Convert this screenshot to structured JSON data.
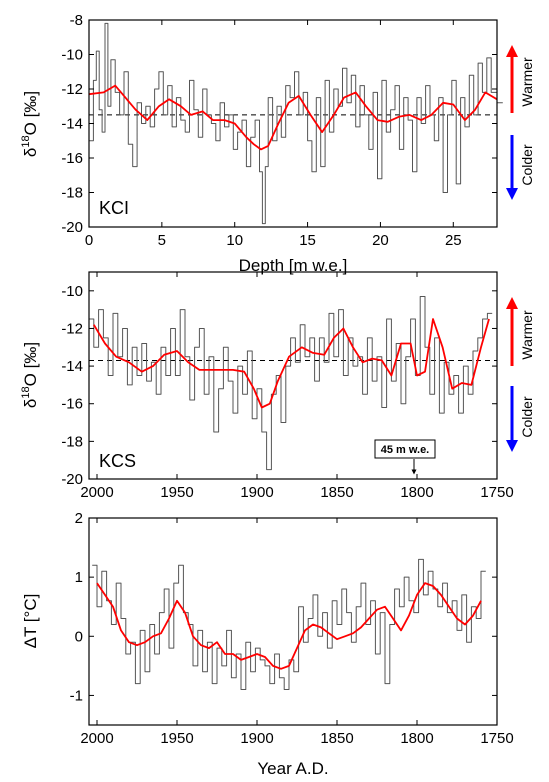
{
  "chart_data": [
    {
      "type": "line",
      "panel_label": "KCI",
      "xlabel": "Depth [m w.e.]",
      "ylabel": "δ18O [‰]",
      "ylabel_main": "δ",
      "ylabel_sup": "18",
      "ylabel_rest": "O [‰]",
      "xlim": [
        0,
        28
      ],
      "ylim": [
        -20,
        -8
      ],
      "xticks": [
        "0",
        "5",
        "10",
        "15",
        "20",
        "25"
      ],
      "yticks": [
        "-20",
        "-18",
        "-16",
        "-14",
        "-12",
        "-10",
        "-8"
      ],
      "reference_line_y": -13.5,
      "series": [
        {
          "color": "#555555",
          "style": "step",
          "x": [
            0,
            0.3,
            0.5,
            0.7,
            0.9,
            1.1,
            1.3,
            1.5,
            1.8,
            2.1,
            2.4,
            2.7,
            3.0,
            3.3,
            3.6,
            3.9,
            4.2,
            4.5,
            4.8,
            5.1,
            5.4,
            5.7,
            6.0,
            6.3,
            6.6,
            6.9,
            7.2,
            7.5,
            7.8,
            8.1,
            8.4,
            8.7,
            9.0,
            9.3,
            9.6,
            9.9,
            10.2,
            10.5,
            10.8,
            11.1,
            11.4,
            11.7,
            11.9,
            12.1,
            12.3,
            12.6,
            12.9,
            13.2,
            13.5,
            13.8,
            14.1,
            14.4,
            14.7,
            15.0,
            15.3,
            15.6,
            15.9,
            16.2,
            16.5,
            16.8,
            17.1,
            17.4,
            17.7,
            18.0,
            18.3,
            18.6,
            18.9,
            19.2,
            19.5,
            19.8,
            20.1,
            20.4,
            20.7,
            21.0,
            21.3,
            21.6,
            21.9,
            22.2,
            22.5,
            22.8,
            23.1,
            23.4,
            23.7,
            24.0,
            24.3,
            24.6,
            24.9,
            25.2,
            25.5,
            25.8,
            26.1,
            26.4,
            26.7,
            27.0,
            27.3,
            27.6,
            28.0
          ],
          "y": [
            -15,
            -11.5,
            -9.8,
            -13.2,
            -14.5,
            -8.2,
            -13,
            -10.3,
            -12.2,
            -13.5,
            -11,
            -15.2,
            -16.5,
            -12.8,
            -14,
            -13,
            -14.2,
            -12,
            -11,
            -13.5,
            -11.8,
            -14.2,
            -12.5,
            -13.8,
            -14.5,
            -11.5,
            -13.2,
            -14.8,
            -12,
            -13.5,
            -14,
            -15,
            -12.8,
            -14.2,
            -13.5,
            -15.5,
            -14.5,
            -13.8,
            -16.5,
            -14.8,
            -13.8,
            -16.8,
            -19.8,
            -16.5,
            -12.5,
            -15,
            -13,
            -14.8,
            -11.8,
            -12.5,
            -11,
            -13.5,
            -12.2,
            -15,
            -16.8,
            -12.5,
            -16.5,
            -11.5,
            -14.5,
            -12,
            -13,
            -10.8,
            -12.8,
            -11.2,
            -14.2,
            -11.8,
            -13.5,
            -15.5,
            -12.2,
            -17.2,
            -11.5,
            -14.5,
            -13.2,
            -11.8,
            -15.5,
            -12.5,
            -13.8,
            -16.8,
            -12.5,
            -14,
            -11.8,
            -13.5,
            -15,
            -12.5,
            -18,
            -13.5,
            -11.5,
            -17.5,
            -12.5,
            -14.2,
            -11.2,
            -13.5,
            -10.5,
            -12.2,
            -10.2,
            -12.2,
            -12.8
          ]
        },
        {
          "color": "#ff0000",
          "style": "smooth",
          "x": [
            0,
            1,
            1.8,
            2.5,
            3.2,
            4,
            4.8,
            5.5,
            6.3,
            7,
            7.8,
            8.5,
            9.3,
            10,
            10.8,
            11.3,
            11.8,
            12.3,
            13,
            13.7,
            14.4,
            15.2,
            16,
            16.8,
            17.5,
            18.3,
            19,
            19.8,
            20.5,
            21.3,
            22,
            22.8,
            23.5,
            24.3,
            25,
            25.8,
            26.5,
            27.2,
            28
          ],
          "y": [
            -12.3,
            -12.2,
            -11.8,
            -12.5,
            -13.2,
            -13.8,
            -13,
            -12.6,
            -13,
            -13.5,
            -13.3,
            -13.8,
            -13.8,
            -14,
            -14.8,
            -15.2,
            -15.5,
            -15.3,
            -14,
            -12.8,
            -12.4,
            -13.5,
            -14.5,
            -13.5,
            -12.5,
            -12.2,
            -13,
            -13.8,
            -13.9,
            -13.6,
            -13.5,
            -13.8,
            -13.5,
            -12.8,
            -12.9,
            -13.8,
            -13.2,
            -12.2,
            -12.6
          ]
        }
      ]
    },
    {
      "type": "line",
      "panel_label": "KCS",
      "xlabel": "",
      "ylabel": "δ18O [‰]",
      "ylabel_main": "δ",
      "ylabel_sup": "18",
      "ylabel_rest": "O [‰]",
      "xlim": [
        2005,
        1750
      ],
      "ylim": [
        -20,
        -9
      ],
      "xticks": [
        "2000",
        "1950",
        "1900",
        "1850",
        "1800",
        "1750"
      ],
      "yticks": [
        "-20",
        "-18",
        "-16",
        "-14",
        "-12",
        "-10"
      ],
      "reference_line_y": -13.7,
      "annotation": {
        "text": "45 m w.e.",
        "x": 1800
      },
      "series": [
        {
          "color": "#555555",
          "style": "step",
          "x": [
            2005,
            2002,
            1999,
            1996,
            1993,
            1990,
            1987,
            1984,
            1981,
            1978,
            1975,
            1972,
            1969,
            1966,
            1963,
            1960,
            1957,
            1954,
            1951,
            1948,
            1945,
            1942,
            1939,
            1936,
            1933,
            1930,
            1927,
            1924,
            1921,
            1918,
            1915,
            1912,
            1909,
            1906,
            1903,
            1900,
            1897,
            1894,
            1891,
            1888,
            1885,
            1882,
            1879,
            1876,
            1873,
            1870,
            1867,
            1864,
            1861,
            1858,
            1855,
            1852,
            1849,
            1846,
            1843,
            1840,
            1837,
            1834,
            1831,
            1828,
            1825,
            1822,
            1819,
            1816,
            1813,
            1810,
            1807,
            1804,
            1801,
            1798,
            1795,
            1792,
            1789,
            1786,
            1783,
            1780,
            1777,
            1774,
            1771,
            1768,
            1765,
            1762,
            1759,
            1756
          ],
          "y": [
            -11.5,
            -13,
            -11,
            -12.5,
            -14.5,
            -11.2,
            -13.5,
            -12,
            -15,
            -13,
            -14.5,
            -12.8,
            -14.8,
            -13.8,
            -15.5,
            -13,
            -14.5,
            -12,
            -14.5,
            -11,
            -13.5,
            -15.8,
            -13,
            -12,
            -15.5,
            -13.5,
            -17.5,
            -15.2,
            -13,
            -14.8,
            -16.5,
            -14,
            -15.5,
            -13.2,
            -16.8,
            -15.2,
            -17.5,
            -19.5,
            -15.5,
            -14.5,
            -17,
            -14,
            -12.5,
            -13.8,
            -11.8,
            -13.5,
            -12.5,
            -14.8,
            -12.5,
            -13.8,
            -11.2,
            -13.5,
            -11,
            -14.5,
            -12.5,
            -14,
            -13.5,
            -15.5,
            -12.5,
            -14.8,
            -13.5,
            -16.2,
            -11.5,
            -14.8,
            -12.8,
            -16,
            -13.5,
            -11.5,
            -14.5,
            -10.3,
            -13,
            -15.5,
            -12.5,
            -16.5,
            -13.8,
            -15.5,
            -14.5,
            -16.5,
            -14,
            -15.5,
            -13.2,
            -12.5,
            -11.5,
            -11.2
          ]
        },
        {
          "color": "#ff0000",
          "style": "smooth",
          "x": [
            2002,
            1995,
            1988,
            1980,
            1972,
            1965,
            1958,
            1950,
            1943,
            1936,
            1930,
            1922,
            1915,
            1908,
            1902,
            1897,
            1892,
            1887,
            1880,
            1872,
            1865,
            1858,
            1852,
            1846,
            1840,
            1834,
            1828,
            1822,
            1816,
            1810,
            1804,
            1800,
            1795,
            1790,
            1784,
            1778,
            1772,
            1766,
            1760,
            1755
          ],
          "y": [
            -11.8,
            -12.8,
            -13.5,
            -13.8,
            -14.3,
            -14,
            -13.4,
            -13.2,
            -13.8,
            -14.2,
            -14.2,
            -14.2,
            -14.2,
            -14.3,
            -15.2,
            -16.2,
            -16,
            -14.8,
            -13.5,
            -13,
            -13.3,
            -13.4,
            -12.5,
            -12,
            -13,
            -13.8,
            -13.6,
            -13.7,
            -14.5,
            -12.8,
            -12.8,
            -14.5,
            -14.3,
            -11.5,
            -13,
            -15.2,
            -14.9,
            -15,
            -13,
            -11.5
          ]
        }
      ]
    },
    {
      "type": "line",
      "panel_label": "",
      "xlabel": "Year A.D.",
      "ylabel": "ΔT [°C]",
      "xlim": [
        2005,
        1750
      ],
      "ylim": [
        -1.5,
        2
      ],
      "xticks": [
        "2000",
        "1950",
        "1900",
        "1850",
        "1800",
        "1750"
      ],
      "yticks": [
        "-1",
        "0",
        "1",
        "2"
      ],
      "series": [
        {
          "color": "#555555",
          "style": "step",
          "x": [
            2003,
            2000,
            1997,
            1994,
            1991,
            1988,
            1985,
            1982,
            1979,
            1976,
            1973,
            1970,
            1967,
            1964,
            1961,
            1958,
            1955,
            1952,
            1949,
            1946,
            1943,
            1940,
            1937,
            1934,
            1931,
            1928,
            1925,
            1922,
            1919,
            1916,
            1913,
            1910,
            1907,
            1904,
            1901,
            1898,
            1895,
            1892,
            1889,
            1886,
            1883,
            1880,
            1877,
            1874,
            1871,
            1868,
            1865,
            1862,
            1859,
            1856,
            1853,
            1850,
            1847,
            1844,
            1841,
            1838,
            1835,
            1832,
            1829,
            1826,
            1823,
            1820,
            1817,
            1814,
            1811,
            1808,
            1805,
            1802,
            1799,
            1796,
            1793,
            1790,
            1787,
            1784,
            1781,
            1778,
            1775,
            1772,
            1769,
            1766,
            1763,
            1760
          ],
          "y": [
            1.2,
            0.5,
            1.1,
            0.6,
            0.2,
            0.9,
            0.3,
            -0.3,
            -0.1,
            -0.8,
            0.1,
            -0.6,
            0.2,
            -0.3,
            0.4,
            0.8,
            -0.2,
            0.9,
            1.2,
            0.4,
            0.2,
            -0.5,
            0.1,
            -0.6,
            -0.1,
            -0.8,
            -0.2,
            -0.5,
            0.1,
            -0.7,
            -0.3,
            -0.9,
            -0.1,
            -0.6,
            -0.2,
            -0.4,
            -0.5,
            -0.8,
            -0.3,
            -0.7,
            -0.9,
            -0.4,
            -0.6,
            0.5,
            -0.1,
            0.3,
            0.7,
            0,
            0.4,
            -0.2,
            0.6,
            0.2,
            0.8,
            0.4,
            -0.1,
            0.5,
            0.9,
            0.2,
            0.6,
            -0.3,
            0.4,
            -0.8,
            0.2,
            0.8,
            0.5,
            1,
            0.6,
            0.4,
            1.3,
            0.7,
            1.1,
            0.8,
            0.5,
            0.9,
            0.4,
            0.6,
            0.1,
            0.7,
            -0.1,
            0.5,
            0.3,
            1.1
          ]
        },
        {
          "color": "#ff0000",
          "style": "smooth",
          "x": [
            2000,
            1995,
            1990,
            1985,
            1980,
            1975,
            1970,
            1965,
            1960,
            1955,
            1950,
            1945,
            1940,
            1935,
            1930,
            1925,
            1920,
            1915,
            1910,
            1905,
            1900,
            1895,
            1890,
            1885,
            1880,
            1875,
            1870,
            1865,
            1860,
            1855,
            1850,
            1845,
            1840,
            1835,
            1830,
            1825,
            1820,
            1815,
            1810,
            1805,
            1800,
            1795,
            1790,
            1785,
            1780,
            1775,
            1770,
            1765,
            1760
          ],
          "y": [
            0.9,
            0.7,
            0.5,
            0.1,
            -0.1,
            -0.15,
            -0.1,
            0,
            0.05,
            0.3,
            0.6,
            0.4,
            0,
            -0.15,
            -0.2,
            -0.1,
            -0.3,
            -0.3,
            -0.4,
            -0.35,
            -0.3,
            -0.35,
            -0.5,
            -0.55,
            -0.5,
            -0.2,
            0.1,
            0.2,
            0.15,
            0.05,
            -0.05,
            0,
            0.05,
            0.15,
            0.3,
            0.45,
            0.5,
            0.3,
            0.1,
            0.35,
            0.7,
            0.9,
            0.85,
            0.7,
            0.5,
            0.3,
            0.2,
            0.35,
            0.6
          ]
        }
      ]
    }
  ],
  "side_labels": {
    "warmer": "Warmer",
    "colder": "Colder",
    "warmer_color": "#ff0000",
    "colder_color": "#0000ff"
  }
}
